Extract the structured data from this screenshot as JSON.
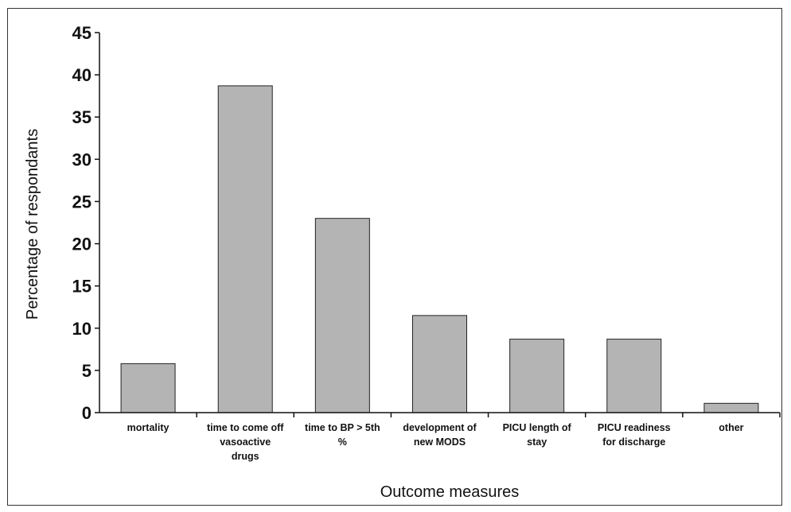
{
  "chart_data": {
    "type": "bar",
    "title": "",
    "xlabel": "Outcome measures",
    "ylabel": "Percentage of respondants",
    "categories": [
      [
        "mortality"
      ],
      [
        "time to come off",
        "vasoactive",
        "drugs"
      ],
      [
        "time to BP > 5th",
        "%"
      ],
      [
        "development of",
        "new MODS"
      ],
      [
        "PICU length of",
        "stay"
      ],
      [
        "PICU readiness",
        "for discharge"
      ],
      [
        "other"
      ]
    ],
    "values": [
      5.8,
      38.7,
      23,
      11.5,
      8.7,
      8.7,
      1.1
    ],
    "ylim": [
      0,
      45
    ],
    "yticks": [
      "0",
      "5",
      "10",
      "15",
      "20",
      "25",
      "30",
      "35",
      "40",
      "45"
    ],
    "grid": false,
    "bar_color": "#b4b4b4",
    "bar_edge_color": "#222222"
  }
}
